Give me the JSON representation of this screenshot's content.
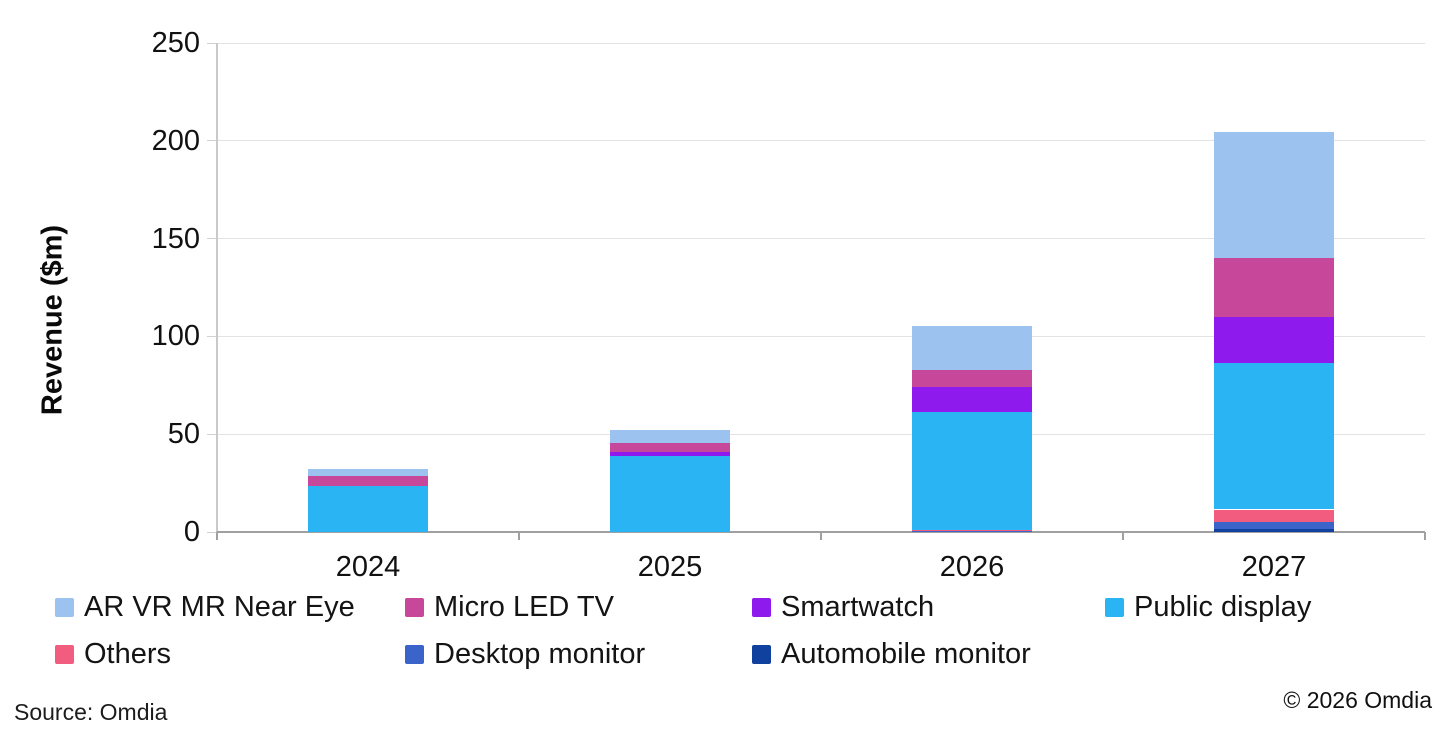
{
  "chart_data": {
    "type": "bar",
    "stacked": true,
    "title": "",
    "xlabel": "",
    "ylabel": "Revenue ($m)",
    "categories": [
      "2024",
      "2025",
      "2026",
      "2027"
    ],
    "ylim": [
      0,
      250
    ],
    "yticks": [
      0,
      50,
      100,
      150,
      200,
      250
    ],
    "grid": "horizontal light gray gridlines",
    "legend_position": "bottom",
    "legend_rows": [
      [
        "AR VR MR Near Eye",
        "Micro LED TV",
        "Smartwatch",
        "Public display"
      ],
      [
        "Others",
        "Desktop monitor",
        "Automobile monitor"
      ]
    ],
    "stack_order_bottom_to_top": [
      "Automobile monitor",
      "Desktop monitor",
      "Others",
      "Public display",
      "Smartwatch",
      "Micro LED TV",
      "AR VR MR Near Eye"
    ],
    "series": [
      {
        "name": "AR VR MR Near Eye",
        "color": "#9cc3f0",
        "values": [
          3.5,
          6.5,
          22.5,
          64.5
        ]
      },
      {
        "name": "Micro LED TV",
        "color": "#c7479a",
        "values": [
          5,
          4.5,
          8.5,
          30
        ]
      },
      {
        "name": "Smartwatch",
        "color": "#8f1aee",
        "values": [
          0,
          2,
          13,
          23.5
        ]
      },
      {
        "name": "Public display",
        "color": "#2bb4f3",
        "values": [
          23.5,
          39,
          60,
          75
        ]
      },
      {
        "name": "Others",
        "color": "#f25c7f",
        "values": [
          0,
          0,
          0.5,
          6.5
        ]
      },
      {
        "name": "Desktop monitor",
        "color": "#3b64cb",
        "values": [
          0,
          0,
          0.3,
          3.5
        ]
      },
      {
        "name": "Automobile monitor",
        "color": "#10419f",
        "values": [
          0,
          0,
          0.3,
          1.5
        ]
      }
    ],
    "approx_totals": [
      32,
      52,
      105,
      205
    ]
  },
  "footer": {
    "source": "Source: Omdia",
    "copyright": "© 2026 Omdia"
  }
}
